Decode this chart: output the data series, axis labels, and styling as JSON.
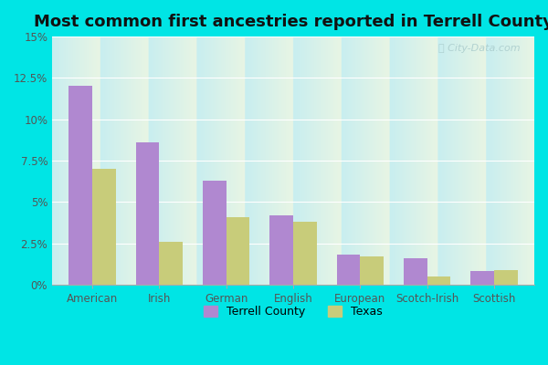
{
  "title": "Most common first ancestries reported in Terrell County",
  "categories": [
    "American",
    "Irish",
    "German",
    "English",
    "European",
    "Scotch-Irish",
    "Scottish"
  ],
  "terrell_county": [
    12.0,
    8.6,
    6.3,
    4.2,
    1.8,
    1.6,
    0.8
  ],
  "texas": [
    7.0,
    2.6,
    4.1,
    3.8,
    1.7,
    0.5,
    0.9
  ],
  "terrell_color": "#b088d0",
  "texas_color": "#c8cc7a",
  "bg_top": "#c8eef0",
  "bg_bottom": "#e8f5e4",
  "outer_background": "#00e5e5",
  "ylim": [
    0,
    15
  ],
  "yticks": [
    0,
    2.5,
    5.0,
    7.5,
    10.0,
    12.5,
    15.0
  ],
  "ytick_labels": [
    "0%",
    "2.5%",
    "5%",
    "7.5%",
    "10%",
    "12.5%",
    "15%"
  ],
  "title_fontsize": 13,
  "legend_label_terrell": "Terrell County",
  "legend_label_texas": "Texas",
  "bar_width": 0.35,
  "watermark": "ⓘ City-Data.com"
}
